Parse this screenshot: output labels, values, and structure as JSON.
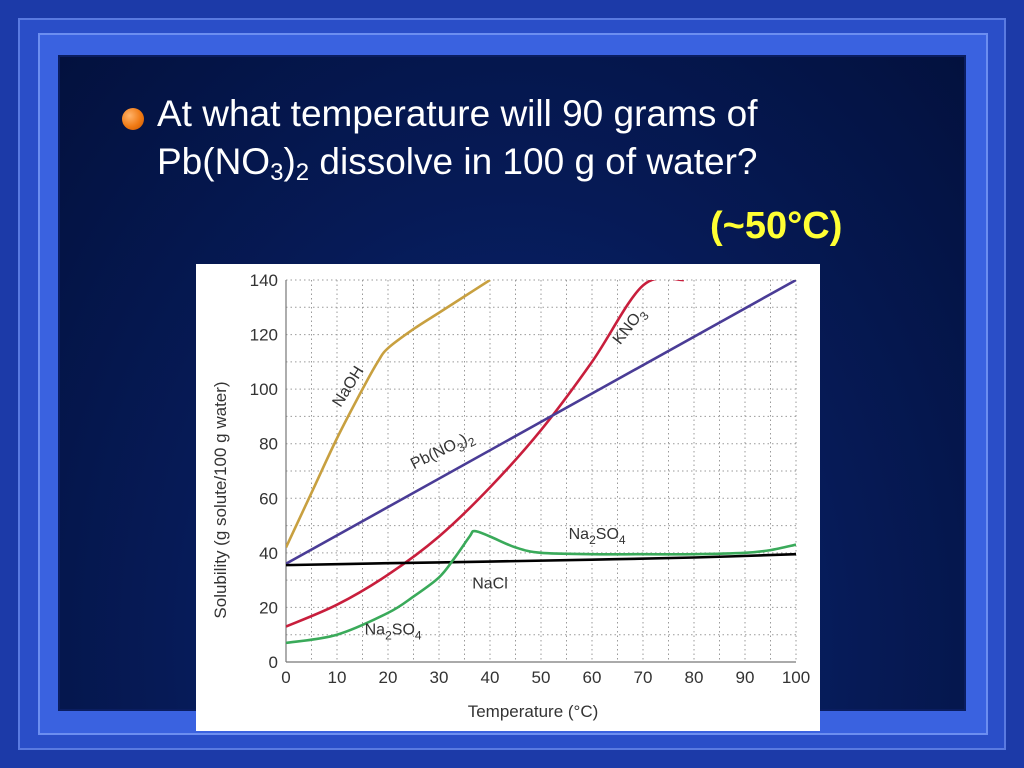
{
  "slide": {
    "question_line1": "At what temperature will 90 grams of",
    "question_line2_pre": "Pb(NO",
    "question_line2_sub1": "3",
    "question_line2_mid": ")",
    "question_line2_sub2": "2",
    "question_line2_post": " dissolve in 100 g of water?",
    "answer": "(~50°C)",
    "colors": {
      "background": "#061a56",
      "text": "#ffffff",
      "answer": "#ffff33",
      "bullet": "#f07a14"
    }
  },
  "chart_data": {
    "type": "line",
    "xlabel": "Temperature (°C)",
    "ylabel": "Solubility (g solute/100 g water)",
    "xlim": [
      0,
      100
    ],
    "ylim": [
      0,
      140
    ],
    "xticks": [
      0,
      10,
      20,
      30,
      40,
      50,
      60,
      70,
      80,
      90,
      100
    ],
    "yticks": [
      0,
      20,
      40,
      60,
      80,
      100,
      120,
      140
    ],
    "grid": true,
    "series": [
      {
        "name": "NaOH",
        "color": "#c8a040",
        "x": [
          0,
          5,
          10,
          15,
          18,
          20,
          25,
          30,
          35,
          40
        ],
        "y": [
          42,
          62,
          82,
          100,
          110,
          115,
          122,
          128,
          134,
          140
        ]
      },
      {
        "name": "KNO3",
        "color": "#c81e3c",
        "x": [
          0,
          10,
          20,
          30,
          40,
          50,
          60,
          70,
          78
        ],
        "y": [
          13,
          21,
          32,
          46,
          64,
          85,
          110,
          138,
          140
        ]
      },
      {
        "name": "Pb(NO3)2",
        "color": "#4a3c96",
        "x": [
          0,
          100
        ],
        "y": [
          36,
          140
        ]
      },
      {
        "name": "NaCl",
        "color": "#000000",
        "x": [
          0,
          20,
          40,
          60,
          80,
          100
        ],
        "y": [
          35.5,
          36.2,
          36.8,
          37.5,
          38.3,
          39.5
        ]
      },
      {
        "name": "Na2SO4",
        "color": "#3aaa5a",
        "x": [
          0,
          10,
          20,
          25,
          30,
          33,
          36,
          37,
          40,
          45,
          50,
          60,
          70,
          80,
          90,
          95,
          100
        ],
        "y": [
          7,
          10,
          18,
          24,
          31,
          38,
          46,
          48,
          46,
          42,
          40,
          39.5,
          39.5,
          39.5,
          40,
          41,
          43
        ]
      }
    ],
    "annotations": [
      {
        "id": "naoh",
        "pre": "NaOH",
        "sub1": "",
        "mid": "",
        "sub2": "",
        "x": 13,
        "y": 100,
        "rotate": -58
      },
      {
        "id": "kno3",
        "pre": "KNO",
        "sub1": "3",
        "mid": "",
        "sub2": "",
        "x": 68,
        "y": 122,
        "rotate": -52
      },
      {
        "id": "pbno3",
        "pre": "Pb(NO",
        "sub1": "3",
        "mid": ")",
        "sub2": "2",
        "x": 31,
        "y": 76,
        "rotate": -26
      },
      {
        "id": "na2so4-upper",
        "pre": "Na",
        "sub1": "2",
        "mid": "SO",
        "sub2": "4",
        "x": 61,
        "y": 45,
        "rotate": 0
      },
      {
        "id": "nacl",
        "pre": "NaCl",
        "sub1": "",
        "mid": "",
        "sub2": "",
        "x": 40,
        "y": 27,
        "rotate": 0
      },
      {
        "id": "na2so4-lower",
        "pre": "Na",
        "sub1": "2",
        "mid": "SO",
        "sub2": "4",
        "x": 21,
        "y": 10,
        "rotate": 0
      }
    ]
  }
}
